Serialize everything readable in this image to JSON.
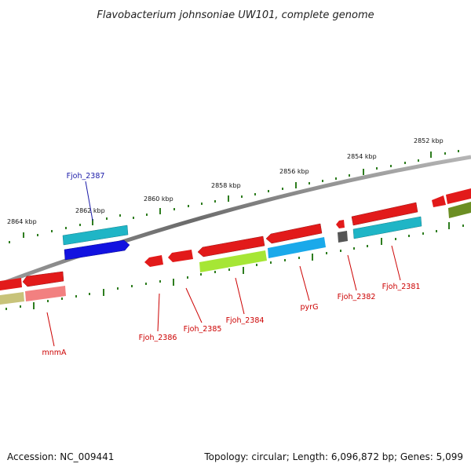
{
  "title": "Flavobacterium johnsoniae UW101, complete genome",
  "accession": "Accession: NC_009441",
  "summary": "Topology: circular; Length: 6,096,872 bp; Genes: 5,099",
  "colors": {
    "backbone": "#7a7a7a",
    "tick": "#2e7d1f",
    "gene_label": "#cc0000",
    "highlight_label": "#1a1aa8"
  },
  "scale_labels": [
    "2864 kbp",
    "2862 kbp",
    "2860 kbp",
    "2858 kbp",
    "2856 kbp",
    "2854 kbp",
    "2852 kbp"
  ],
  "genes": [
    {
      "label": "mnmA",
      "color": "red"
    },
    {
      "label": "Fjoh_2387",
      "color": "blue"
    },
    {
      "label": "Fjoh_2386",
      "color": "red"
    },
    {
      "label": "Fjoh_2385",
      "color": "red"
    },
    {
      "label": "Fjoh_2384",
      "color": "red"
    },
    {
      "label": "pyrG",
      "color": "red"
    },
    {
      "label": "Fjoh_2382",
      "color": "red"
    },
    {
      "label": "Fjoh_2381",
      "color": "red"
    }
  ]
}
